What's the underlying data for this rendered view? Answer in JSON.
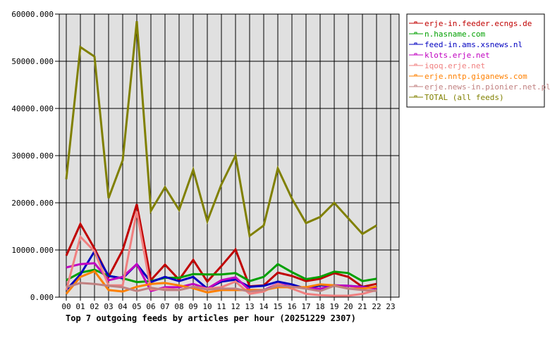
{
  "chart_data": {
    "type": "line",
    "title": "Top 7 outgoing feeds by articles per hour (20251229 2307)",
    "xlabel": "",
    "ylabel": "",
    "ylim": [
      0,
      60000
    ],
    "yticks": [
      "0.000",
      "10000.000",
      "20000.000",
      "30000.000",
      "40000.000",
      "50000.000",
      "60000.000"
    ],
    "categories": [
      "00",
      "01",
      "02",
      "03",
      "04",
      "05",
      "06",
      "07",
      "08",
      "09",
      "10",
      "11",
      "12",
      "13",
      "14",
      "15",
      "16",
      "17",
      "18",
      "19",
      "20",
      "21",
      "22",
      "23"
    ],
    "grid": true,
    "legend_position": "right",
    "series": [
      {
        "name": "erje-in.feeder.ecngs.de",
        "color": "#c00000",
        "values": [
          8800,
          15500,
          10300,
          4300,
          10000,
          19700,
          3600,
          6900,
          3700,
          7900,
          3300,
          6600,
          10100,
          2300,
          2500,
          5200,
          4500,
          3400,
          3900,
          5100,
          4300,
          2200,
          2800
        ]
      },
      {
        "name": "n.hasname.com",
        "color": "#00a000",
        "values": [
          3600,
          5200,
          5800,
          4500,
          4000,
          3200,
          3400,
          4100,
          4100,
          4900,
          4800,
          4800,
          5100,
          3400,
          4300,
          7000,
          5300,
          3800,
          4300,
          5400,
          5100,
          3400,
          3900
        ]
      },
      {
        "name": "feed-in.ams.xsnews.nl",
        "color": "#0000c0",
        "values": [
          1500,
          4800,
          9700,
          4500,
          4000,
          7000,
          3200,
          4300,
          3400,
          4300,
          1800,
          3300,
          3700,
          2200,
          2400,
          3300,
          2700,
          1800,
          2500,
          2500,
          2400,
          2200,
          1800
        ]
      },
      {
        "name": "klots.erje.net",
        "color": "#c000c0",
        "values": [
          6300,
          7000,
          7200,
          3600,
          4300,
          7000,
          1300,
          2100,
          2100,
          2800,
          1800,
          3600,
          4200,
          1500,
          1500,
          2800,
          2200,
          1900,
          1800,
          2500,
          2400,
          2100,
          1800
        ]
      },
      {
        "name": "iqoq.erje.net",
        "color": "#f08080",
        "values": [
          1500,
          12800,
          9700,
          2500,
          2500,
          18200,
          1600,
          1800,
          1500,
          2200,
          1800,
          2100,
          3300,
          700,
          1200,
          2800,
          1800,
          700,
          400,
          300,
          300,
          700,
          1500
        ]
      },
      {
        "name": "erje.nntp.giganews.com",
        "color": "#ff8000",
        "values": [
          700,
          4300,
          5500,
          1500,
          1200,
          2200,
          2800,
          3000,
          2500,
          1900,
          1000,
          1500,
          1500,
          1500,
          1500,
          2100,
          2100,
          2100,
          2700,
          2500,
          1800,
          1800,
          2200
        ]
      },
      {
        "name": "erje.news-in.pionier.net.pl",
        "color": "#c08080",
        "values": [
          2100,
          3000,
          2800,
          2400,
          2100,
          1300,
          2000,
          1500,
          1500,
          2200,
          1600,
          1800,
          1800,
          1200,
          1500,
          2400,
          2200,
          1800,
          1300,
          2400,
          1800,
          1500,
          1300
        ]
      },
      {
        "name": "TOTAL (all feeds)",
        "color": "#808000",
        "values": [
          25000,
          53000,
          51000,
          21000,
          29000,
          58500,
          18300,
          23300,
          18500,
          27000,
          16100,
          23900,
          30000,
          13000,
          15200,
          27300,
          20900,
          15700,
          17000,
          20000,
          16700,
          13400,
          15200
        ]
      }
    ]
  }
}
